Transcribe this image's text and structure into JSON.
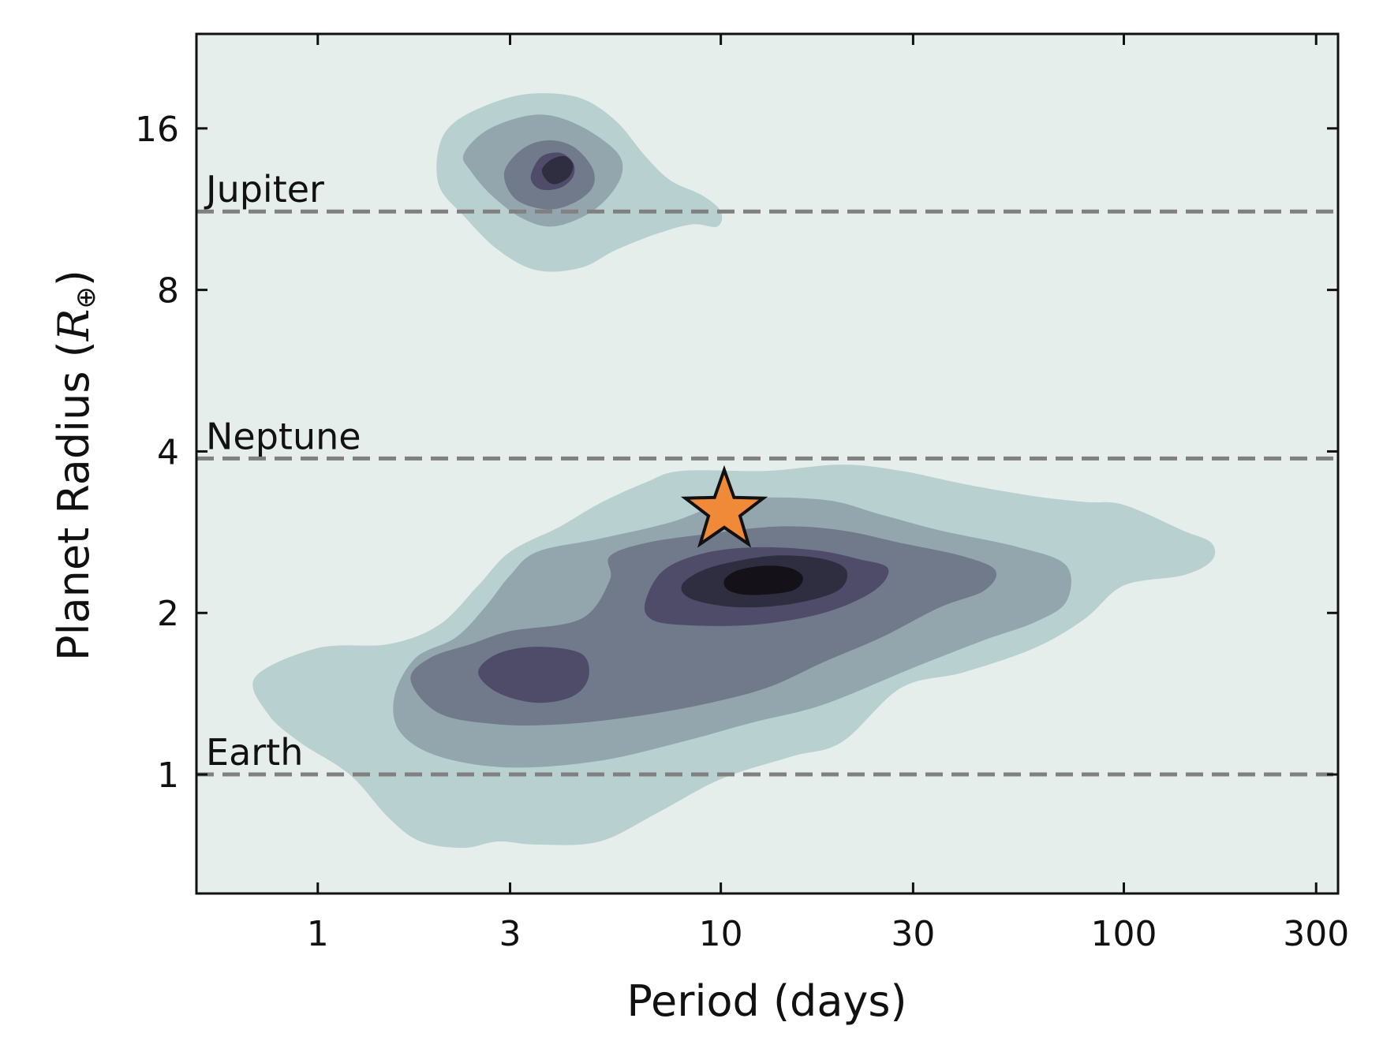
{
  "chart_data": {
    "type": "contour",
    "xlabel": "Period (days)",
    "ylabel_text": "Planet Radius (",
    "ylabel_symbol": "R",
    "ylabel_sub": "⊕",
    "ylabel_close": ")",
    "x_scale": "log",
    "y_scale": "log",
    "xlim": [
      0.5,
      340
    ],
    "ylim": [
      0.6,
      24
    ],
    "x_ticks": [
      1,
      3,
      10,
      30,
      100,
      300
    ],
    "x_tick_labels": [
      "1",
      "3",
      "10",
      "30",
      "100",
      "300"
    ],
    "y_ticks": [
      1,
      2,
      4,
      8,
      16
    ],
    "y_tick_labels": [
      "1",
      "2",
      "4",
      "8",
      "16"
    ],
    "grid": false,
    "colors": {
      "background": "#e6eeec",
      "levels": [
        "#b9d0d0",
        "#94a6ad",
        "#717a8b",
        "#4e4c69",
        "#2f2d40",
        "#141218"
      ],
      "reference_line": "#808080",
      "marker_fill": "#f08a38",
      "marker_edge": "#111111"
    },
    "reference_lines": [
      {
        "label": "Jupiter",
        "radius": 11.2
      },
      {
        "label": "Neptune",
        "radius": 3.88
      },
      {
        "label": "Earth",
        "radius": 1.0
      }
    ],
    "highlight_planet": {
      "marker": "star",
      "period": 10.2,
      "radius": 3.1
    },
    "density_peaks": [
      {
        "period": 3.5,
        "radius": 13.5
      },
      {
        "period": 13.0,
        "radius": 2.35
      },
      {
        "period": 4.5,
        "radius": 1.55
      }
    ],
    "contours": [
      {
        "level": 1,
        "polygons": [
          [
            [
              2.0,
              14.8
            ],
            [
              2.2,
              16.5
            ],
            [
              2.8,
              18.0
            ],
            [
              3.5,
              18.6
            ],
            [
              4.5,
              18.2
            ],
            [
              5.5,
              16.5
            ],
            [
              6.5,
              14.2
            ],
            [
              7.5,
              12.8
            ],
            [
              9.0,
              12.0
            ],
            [
              10.0,
              11.2
            ],
            [
              9.8,
              10.5
            ],
            [
              8.5,
              10.6
            ],
            [
              7.0,
              10.2
            ],
            [
              5.5,
              9.5
            ],
            [
              4.5,
              8.8
            ],
            [
              3.5,
              8.7
            ],
            [
              2.8,
              9.5
            ],
            [
              2.3,
              11.0
            ],
            [
              2.0,
              12.5
            ]
          ],
          [
            [
              0.7,
              1.52
            ],
            [
              1.0,
              1.72
            ],
            [
              1.5,
              1.75
            ],
            [
              2.0,
              1.9
            ],
            [
              2.5,
              2.25
            ],
            [
              3.0,
              2.6
            ],
            [
              4.0,
              2.9
            ],
            [
              5.0,
              3.2
            ],
            [
              6.5,
              3.5
            ],
            [
              8.0,
              3.68
            ],
            [
              13.0,
              3.68
            ],
            [
              20.0,
              3.78
            ],
            [
              28.0,
              3.68
            ],
            [
              40.0,
              3.48
            ],
            [
              60.0,
              3.3
            ],
            [
              80.0,
              3.22
            ],
            [
              100.0,
              3.18
            ],
            [
              140.0,
              2.85
            ],
            [
              165.0,
              2.7
            ],
            [
              165.0,
              2.5
            ],
            [
              140.0,
              2.35
            ],
            [
              100.0,
              2.25
            ],
            [
              80.0,
              1.95
            ],
            [
              60.0,
              1.72
            ],
            [
              40.0,
              1.55
            ],
            [
              28.0,
              1.45
            ],
            [
              20.0,
              1.15
            ],
            [
              15.0,
              1.08
            ],
            [
              10.0,
              0.98
            ],
            [
              7.0,
              0.85
            ],
            [
              5.0,
              0.75
            ],
            [
              3.5,
              0.74
            ],
            [
              2.8,
              0.75
            ],
            [
              2.3,
              0.73
            ],
            [
              1.8,
              0.75
            ],
            [
              1.5,
              0.83
            ],
            [
              1.2,
              1.0
            ],
            [
              0.9,
              1.15
            ],
            [
              0.75,
              1.3
            ]
          ]
        ]
      },
      {
        "level": 2,
        "polygons": [
          [
            [
              2.3,
              14.3
            ],
            [
              2.6,
              15.8
            ],
            [
              3.2,
              16.8
            ],
            [
              3.8,
              16.9
            ],
            [
              4.6,
              16.0
            ],
            [
              5.5,
              14.5
            ],
            [
              5.7,
              13.3
            ],
            [
              5.3,
              12.0
            ],
            [
              4.6,
              11.0
            ],
            [
              3.8,
              10.5
            ],
            [
              3.2,
              10.9
            ],
            [
              2.7,
              12.0
            ],
            [
              2.4,
              13.3
            ]
          ],
          [
            [
              1.55,
              1.4
            ],
            [
              1.75,
              1.65
            ],
            [
              2.2,
              1.8
            ],
            [
              2.6,
              2.05
            ],
            [
              3.0,
              2.35
            ],
            [
              3.5,
              2.6
            ],
            [
              5.0,
              2.75
            ],
            [
              7.5,
              2.95
            ],
            [
              11.0,
              3.25
            ],
            [
              18.0,
              3.25
            ],
            [
              25.0,
              3.05
            ],
            [
              35.0,
              2.85
            ],
            [
              55.0,
              2.65
            ],
            [
              72.0,
              2.45
            ],
            [
              72.0,
              2.1
            ],
            [
              60.0,
              1.92
            ],
            [
              45.0,
              1.78
            ],
            [
              30.0,
              1.58
            ],
            [
              18.0,
              1.35
            ],
            [
              12.0,
              1.25
            ],
            [
              8.0,
              1.15
            ],
            [
              5.0,
              1.06
            ],
            [
              3.0,
              1.03
            ],
            [
              2.0,
              1.08
            ],
            [
              1.6,
              1.2
            ]
          ]
        ]
      },
      {
        "level": 3,
        "polygons": [
          [
            [
              2.9,
              13.2
            ],
            [
              3.2,
              14.6
            ],
            [
              3.7,
              15.2
            ],
            [
              4.3,
              14.8
            ],
            [
              4.8,
              13.5
            ],
            [
              4.8,
              12.4
            ],
            [
              4.3,
              11.6
            ],
            [
              3.7,
              11.3
            ],
            [
              3.1,
              11.8
            ]
          ],
          [
            [
              1.7,
              1.5
            ],
            [
              1.9,
              1.65
            ],
            [
              2.4,
              1.75
            ],
            [
              3.0,
              1.85
            ],
            [
              4.5,
              1.95
            ],
            [
              5.3,
              2.3
            ],
            [
              5.3,
              2.55
            ],
            [
              6.5,
              2.7
            ],
            [
              9.0,
              2.8
            ],
            [
              14.0,
              2.9
            ],
            [
              20.0,
              2.85
            ],
            [
              28.0,
              2.7
            ],
            [
              40.0,
              2.55
            ],
            [
              48.0,
              2.4
            ],
            [
              45.0,
              2.2
            ],
            [
              35.0,
              2.05
            ],
            [
              25.0,
              1.8
            ],
            [
              18.0,
              1.62
            ],
            [
              13.0,
              1.45
            ],
            [
              9.0,
              1.35
            ],
            [
              6.0,
              1.28
            ],
            [
              4.0,
              1.24
            ],
            [
              2.8,
              1.24
            ],
            [
              2.0,
              1.3
            ]
          ]
        ]
      },
      {
        "level": 4,
        "polygons": [
          [
            [
              3.4,
              13.3
            ],
            [
              3.6,
              14.2
            ],
            [
              4.0,
              14.4
            ],
            [
              4.3,
              13.8
            ],
            [
              4.3,
              13.0
            ],
            [
              4.0,
              12.4
            ],
            [
              3.6,
              12.3
            ],
            [
              3.4,
              12.7
            ]
          ],
          [
            [
              2.5,
              1.55
            ],
            [
              2.8,
              1.68
            ],
            [
              3.5,
              1.73
            ],
            [
              4.5,
              1.68
            ],
            [
              4.7,
              1.52
            ],
            [
              4.3,
              1.4
            ],
            [
              3.5,
              1.36
            ],
            [
              2.8,
              1.42
            ]
          ],
          [
            [
              6.5,
              2.1
            ],
            [
              7.2,
              2.4
            ],
            [
              9.0,
              2.58
            ],
            [
              12.0,
              2.65
            ],
            [
              17.0,
              2.62
            ],
            [
              22.0,
              2.52
            ],
            [
              26.0,
              2.42
            ],
            [
              24.0,
              2.2
            ],
            [
              18.0,
              2.0
            ],
            [
              12.0,
              1.9
            ],
            [
              8.0,
              1.9
            ],
            [
              6.7,
              1.95
            ]
          ]
        ]
      },
      {
        "level": 5,
        "polygons": [
          [
            [
              3.6,
              13.4
            ],
            [
              3.8,
              14.0
            ],
            [
              4.1,
              14.2
            ],
            [
              4.3,
              13.7
            ],
            [
              4.2,
              13.0
            ],
            [
              3.9,
              12.6
            ],
            [
              3.7,
              12.8
            ]
          ],
          [
            [
              8.0,
              2.25
            ],
            [
              9.0,
              2.4
            ],
            [
              11.0,
              2.5
            ],
            [
              14.0,
              2.56
            ],
            [
              18.0,
              2.52
            ],
            [
              20.5,
              2.4
            ],
            [
              19.5,
              2.2
            ],
            [
              15.0,
              2.08
            ],
            [
              11.0,
              2.05
            ],
            [
              8.5,
              2.12
            ]
          ]
        ]
      },
      {
        "level": 6,
        "polygons": [
          [
            [
              10.2,
              2.3
            ],
            [
              11.0,
              2.4
            ],
            [
              13.0,
              2.45
            ],
            [
              15.0,
              2.42
            ],
            [
              16.0,
              2.32
            ],
            [
              15.0,
              2.2
            ],
            [
              12.0,
              2.16
            ],
            [
              10.5,
              2.2
            ]
          ]
        ]
      }
    ]
  }
}
